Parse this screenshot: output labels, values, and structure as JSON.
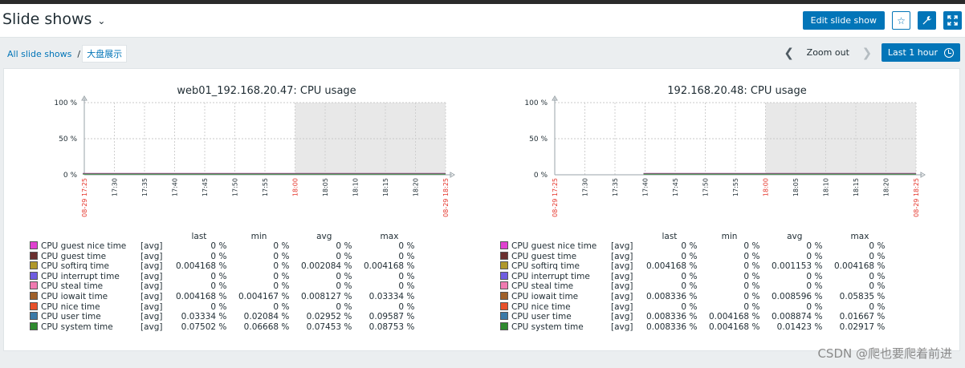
{
  "header": {
    "title": "Slide shows",
    "edit_label": "Edit slide show"
  },
  "breadcrumb": {
    "root": "All slide shows",
    "separator": "/",
    "current": "大盘展示"
  },
  "timecontrol": {
    "zoom_label": "Zoom out",
    "period_label": "Last 1 hour"
  },
  "graphs": [
    {
      "title": "web01_192.168.20.47: CPU usage",
      "y_ticks": [
        "100 %",
        "50 %",
        "0 %"
      ],
      "x_ticks": [
        "08-29 17:25",
        "17:30",
        "17:35",
        "17:40",
        "17:45",
        "17:50",
        "17:55",
        "18:00",
        "18:05",
        "18:10",
        "18:15",
        "18:20",
        "08-29 18:25"
      ],
      "data_start_tick": 0,
      "legend_headers": [
        "last",
        "min",
        "avg",
        "max"
      ],
      "rows": [
        {
          "name": "CPU guest nice time",
          "fn": "[avg]",
          "color": "#e040d0",
          "last": "0 %",
          "min": "0 %",
          "avg": "0 %",
          "max": "0 %"
        },
        {
          "name": "CPU guest time",
          "fn": "[avg]",
          "color": "#6b2f2f",
          "last": "0 %",
          "min": "0 %",
          "avg": "0 %",
          "max": "0 %"
        },
        {
          "name": "CPU softirq time",
          "fn": "[avg]",
          "color": "#b0982a",
          "last": "0.004168 %",
          "min": "0 %",
          "avg": "0.002084 %",
          "max": "0.004168 %"
        },
        {
          "name": "CPU interrupt time",
          "fn": "[avg]",
          "color": "#6f5de0",
          "last": "0 %",
          "min": "0 %",
          "avg": "0 %",
          "max": "0 %"
        },
        {
          "name": "CPU steal time",
          "fn": "[avg]",
          "color": "#f07ab0",
          "last": "0 %",
          "min": "0 %",
          "avg": "0 %",
          "max": "0 %"
        },
        {
          "name": "CPU iowait time",
          "fn": "[avg]",
          "color": "#a0602a",
          "last": "0.004168 %",
          "min": "0.004167 %",
          "avg": "0.008127 %",
          "max": "0.03334 %"
        },
        {
          "name": "CPU nice time",
          "fn": "[avg]",
          "color": "#e8502a",
          "last": "0 %",
          "min": "0 %",
          "avg": "0 %",
          "max": "0 %"
        },
        {
          "name": "CPU user time",
          "fn": "[avg]",
          "color": "#3a7aa8",
          "last": "0.03334 %",
          "min": "0.02084 %",
          "avg": "0.02952 %",
          "max": "0.09587 %"
        },
        {
          "name": "CPU system time",
          "fn": "[avg]",
          "color": "#2f8a2f",
          "last": "0.07502 %",
          "min": "0.06668 %",
          "avg": "0.07453 %",
          "max": "0.08753 %"
        }
      ]
    },
    {
      "title": "192.168.20.48: CPU usage",
      "y_ticks": [
        "100 %",
        "50 %",
        "0 %"
      ],
      "x_ticks": [
        "08-29 17:25",
        "17:30",
        "17:35",
        "17:40",
        "17:45",
        "17:50",
        "17:55",
        "18:00",
        "18:05",
        "18:10",
        "18:15",
        "18:20",
        "08-29 18:25"
      ],
      "data_start_tick": 3,
      "legend_headers": [
        "last",
        "min",
        "avg",
        "max"
      ],
      "rows": [
        {
          "name": "CPU guest nice time",
          "fn": "[avg]",
          "color": "#e040d0",
          "last": "0 %",
          "min": "0 %",
          "avg": "0 %",
          "max": "0 %"
        },
        {
          "name": "CPU guest time",
          "fn": "[avg]",
          "color": "#6b2f2f",
          "last": "0 %",
          "min": "0 %",
          "avg": "0 %",
          "max": "0 %"
        },
        {
          "name": "CPU softirq time",
          "fn": "[avg]",
          "color": "#b0982a",
          "last": "0.004168 %",
          "min": "0 %",
          "avg": "0.001153 %",
          "max": "0.004168 %"
        },
        {
          "name": "CPU interrupt time",
          "fn": "[avg]",
          "color": "#6f5de0",
          "last": "0 %",
          "min": "0 %",
          "avg": "0 %",
          "max": "0 %"
        },
        {
          "name": "CPU steal time",
          "fn": "[avg]",
          "color": "#f07ab0",
          "last": "0 %",
          "min": "0 %",
          "avg": "0 %",
          "max": "0 %"
        },
        {
          "name": "CPU iowait time",
          "fn": "[avg]",
          "color": "#a0602a",
          "last": "0.008336 %",
          "min": "0 %",
          "avg": "0.008596 %",
          "max": "0.05835 %"
        },
        {
          "name": "CPU nice time",
          "fn": "[avg]",
          "color": "#e8502a",
          "last": "0 %",
          "min": "0 %",
          "avg": "0 %",
          "max": "0 %"
        },
        {
          "name": "CPU user time",
          "fn": "[avg]",
          "color": "#3a7aa8",
          "last": "0.008336 %",
          "min": "0.004168 %",
          "avg": "0.008874 %",
          "max": "0.01667 %"
        },
        {
          "name": "CPU system time",
          "fn": "[avg]",
          "color": "#2f8a2f",
          "last": "0.008336 %",
          "min": "0.004168 %",
          "avg": "0.01423 %",
          "max": "0.02917 %"
        }
      ]
    }
  ],
  "chart_data": [
    {
      "type": "area",
      "title": "web01_192.168.20.47: CPU usage",
      "ylim": [
        0,
        100
      ],
      "y_unit": "%",
      "x_range": [
        "08-29 17:25",
        "08-29 18:25"
      ],
      "grid": true,
      "legend_position": "bottom"
    },
    {
      "type": "area",
      "title": "192.168.20.48: CPU usage",
      "ylim": [
        0,
        100
      ],
      "y_unit": "%",
      "x_range": [
        "08-29 17:25",
        "08-29 18:25"
      ],
      "grid": true,
      "legend_position": "bottom"
    }
  ],
  "watermark": "CSDN @爬也要爬着前进"
}
